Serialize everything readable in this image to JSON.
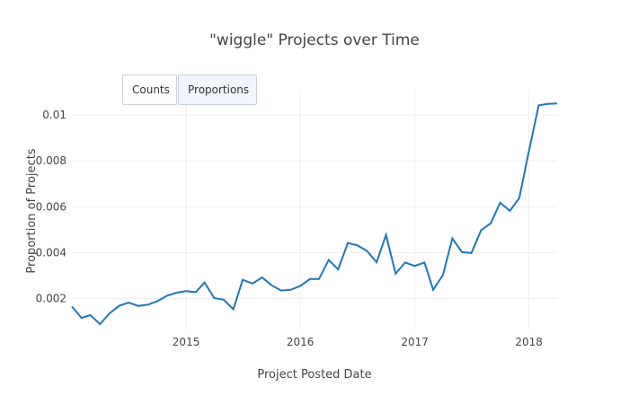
{
  "toggle": {
    "counts_label": "Counts",
    "proportions_label": "Proportions",
    "active": "Proportions"
  },
  "colors": {
    "line": "#1f77b4",
    "grid": "#eeeeee",
    "button_border": "#c9d2dc",
    "button_active_bg": "#f0f6fb"
  },
  "chart_data": {
    "type": "line",
    "title": "\"wiggle\" Projects over Time",
    "xlabel": "Project Posted Date",
    "ylabel": "Proportion of Projects",
    "grid": true,
    "legend": "none",
    "xlim": [
      "2014-01-01",
      "2018-04-01"
    ],
    "ylim": [
      0.00065,
      0.0111
    ],
    "x_ticks": [
      {
        "date": "2015-01-01",
        "label": "2015"
      },
      {
        "date": "2016-01-01",
        "label": "2016"
      },
      {
        "date": "2017-01-01",
        "label": "2017"
      },
      {
        "date": "2018-01-01",
        "label": "2018"
      }
    ],
    "y_ticks": [
      {
        "value": 0.002,
        "label": "0.002"
      },
      {
        "value": 0.004,
        "label": "0.004"
      },
      {
        "value": 0.006,
        "label": "0.006"
      },
      {
        "value": 0.008,
        "label": "0.008"
      },
      {
        "value": 0.01,
        "label": "0.01"
      }
    ],
    "series": [
      {
        "x": [
          "2014-01",
          "2014-02",
          "2014-03",
          "2014-04",
          "2014-05",
          "2014-06",
          "2014-07",
          "2014-08",
          "2014-09",
          "2014-10",
          "2014-11",
          "2014-12",
          "2015-01",
          "2015-02",
          "2015-03",
          "2015-04",
          "2015-05",
          "2015-06",
          "2015-07",
          "2015-08",
          "2015-09",
          "2015-10",
          "2015-11",
          "2015-12",
          "2016-01",
          "2016-02",
          "2016-03",
          "2016-04",
          "2016-05",
          "2016-06",
          "2016-07",
          "2016-08",
          "2016-09",
          "2016-10",
          "2016-11",
          "2016-12",
          "2017-01",
          "2017-02",
          "2017-03",
          "2017-04",
          "2017-05",
          "2017-06",
          "2017-07",
          "2017-08",
          "2017-09",
          "2017-10",
          "2017-11",
          "2017-12",
          "2018-01",
          "2018-02",
          "2018-03",
          "2018-04"
        ],
        "values": [
          0.00165,
          0.00115,
          0.00128,
          0.00088,
          0.00135,
          0.00168,
          0.00182,
          0.00168,
          0.00173,
          0.00188,
          0.00212,
          0.00225,
          0.00232,
          0.00228,
          0.0027,
          0.00202,
          0.00195,
          0.00153,
          0.00282,
          0.00265,
          0.00292,
          0.00258,
          0.00235,
          0.00238,
          0.00255,
          0.00285,
          0.00285,
          0.00368,
          0.00327,
          0.00442,
          0.00432,
          0.00408,
          0.00358,
          0.00477,
          0.00308,
          0.00357,
          0.00342,
          0.00357,
          0.00238,
          0.00302,
          0.00462,
          0.00402,
          0.00398,
          0.00498,
          0.00528,
          0.00618,
          0.00582,
          0.00638,
          0.00845,
          0.01042,
          0.01048,
          0.0105
        ]
      }
    ]
  }
}
